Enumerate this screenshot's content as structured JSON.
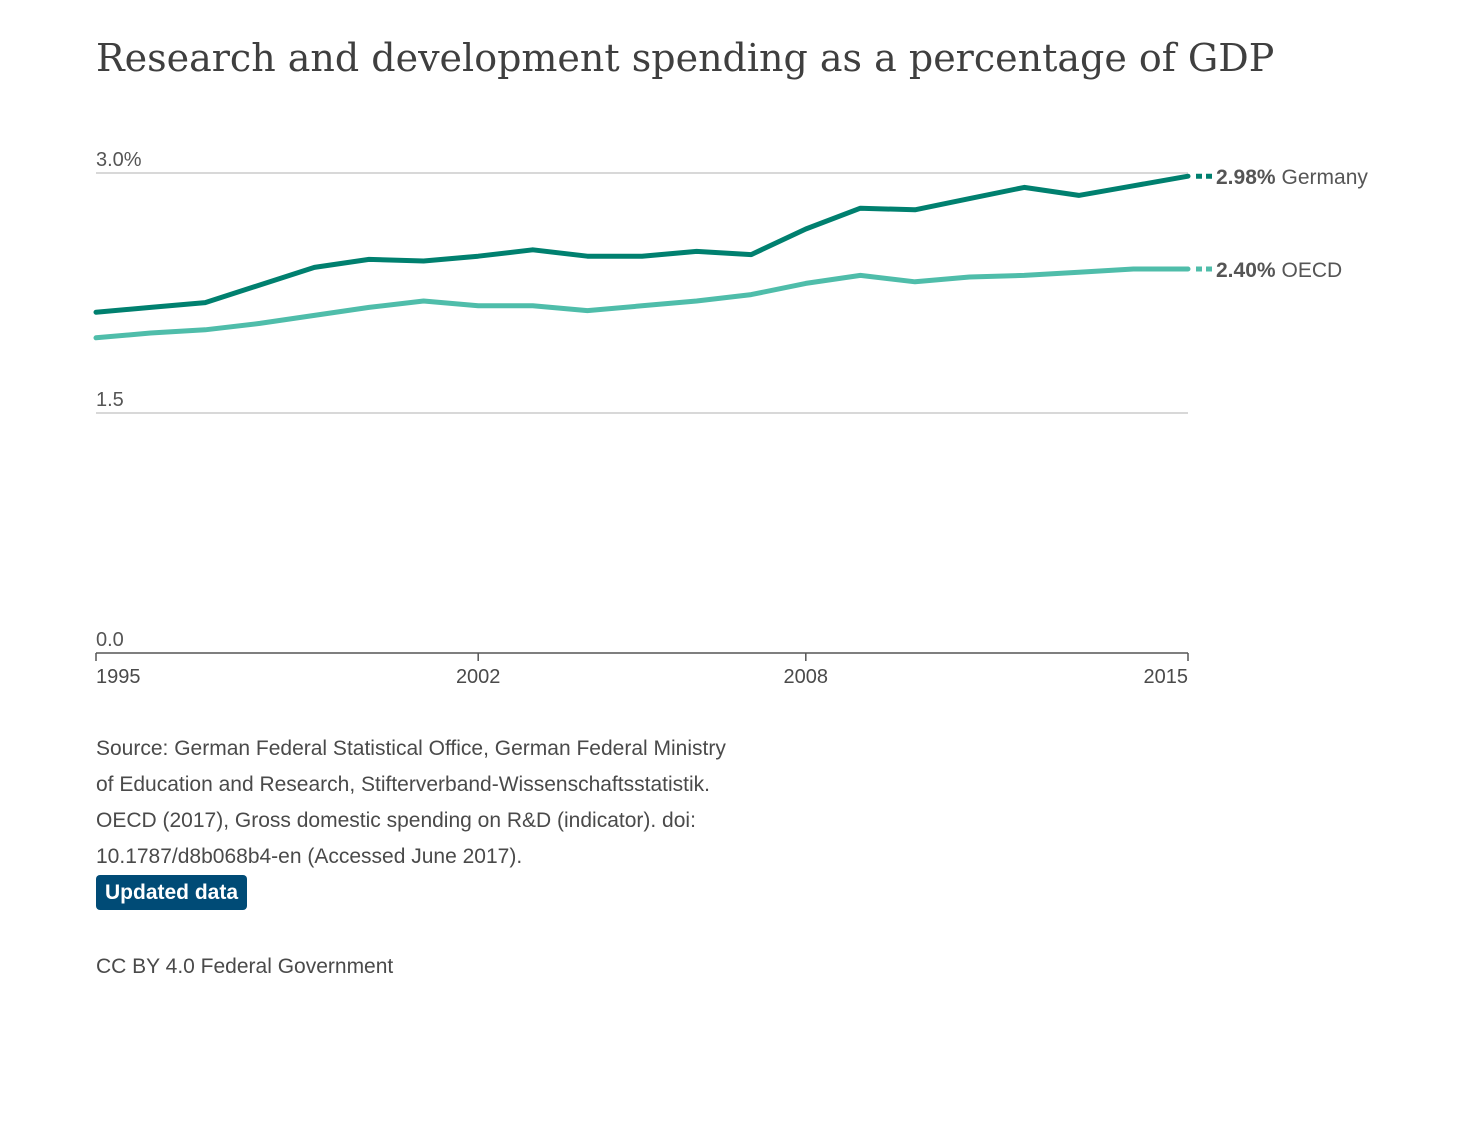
{
  "chart_data": {
    "type": "line",
    "title": "Research and development spending as a percentage of GDP",
    "x": [
      1995,
      1996,
      1997,
      1998,
      1999,
      2000,
      2001,
      2002,
      2003,
      2004,
      2005,
      2006,
      2007,
      2008,
      2009,
      2010,
      2011,
      2012,
      2013,
      2014,
      2015
    ],
    "series": [
      {
        "name": "Germany",
        "color": "#00806f",
        "end_label": "2.98%",
        "values": [
          2.13,
          2.16,
          2.19,
          2.3,
          2.41,
          2.46,
          2.45,
          2.48,
          2.52,
          2.48,
          2.48,
          2.51,
          2.49,
          2.65,
          2.78,
          2.77,
          2.84,
          2.91,
          2.86,
          2.92,
          2.98
        ]
      },
      {
        "name": "OECD",
        "color": "#4fbdaa",
        "end_label": "2.40%",
        "values": [
          1.97,
          2.0,
          2.02,
          2.06,
          2.11,
          2.16,
          2.2,
          2.17,
          2.17,
          2.14,
          2.17,
          2.2,
          2.24,
          2.31,
          2.36,
          2.32,
          2.35,
          2.36,
          2.38,
          2.4,
          2.4
        ]
      }
    ],
    "y_ticks": [
      {
        "value": 3.0,
        "label": "3.0%"
      },
      {
        "value": 1.5,
        "label": "1.5"
      },
      {
        "value": 0.0,
        "label": "0.0"
      }
    ],
    "x_ticks": [
      {
        "value": 1995,
        "label": "1995"
      },
      {
        "value": 2002,
        "label": "2002"
      },
      {
        "value": 2008,
        "label": "2008"
      },
      {
        "value": 2015,
        "label": "2015"
      }
    ],
    "xlim": [
      1995,
      2015
    ],
    "ylim": [
      0,
      3.0
    ],
    "grid": true,
    "legend": "inline-end-labels"
  },
  "footer": {
    "source": "Source: German Federal Statistical Office, German Federal Ministry of Education and Research, Stifterverband-Wissenschaftsstatistik. OECD (2017), Gross domestic spending on R&D (indicator). doi: 10.1787/d8b068b4-en (Accessed June 2017).",
    "updated_label": "Updated data",
    "updated_color": "#004b76",
    "license": "CC BY 4.0 Federal Government"
  }
}
